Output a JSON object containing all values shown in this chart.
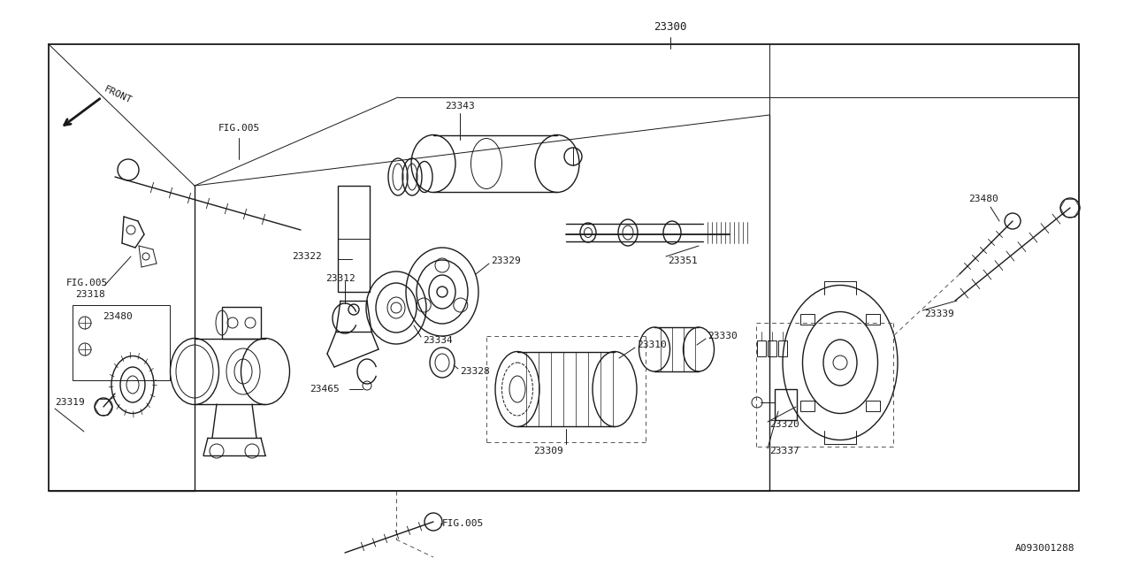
{
  "bg_color": "#ffffff",
  "line_color": "#1a1a1a",
  "fig_width": 12.8,
  "fig_height": 6.4,
  "diagram_id": "A093001288"
}
